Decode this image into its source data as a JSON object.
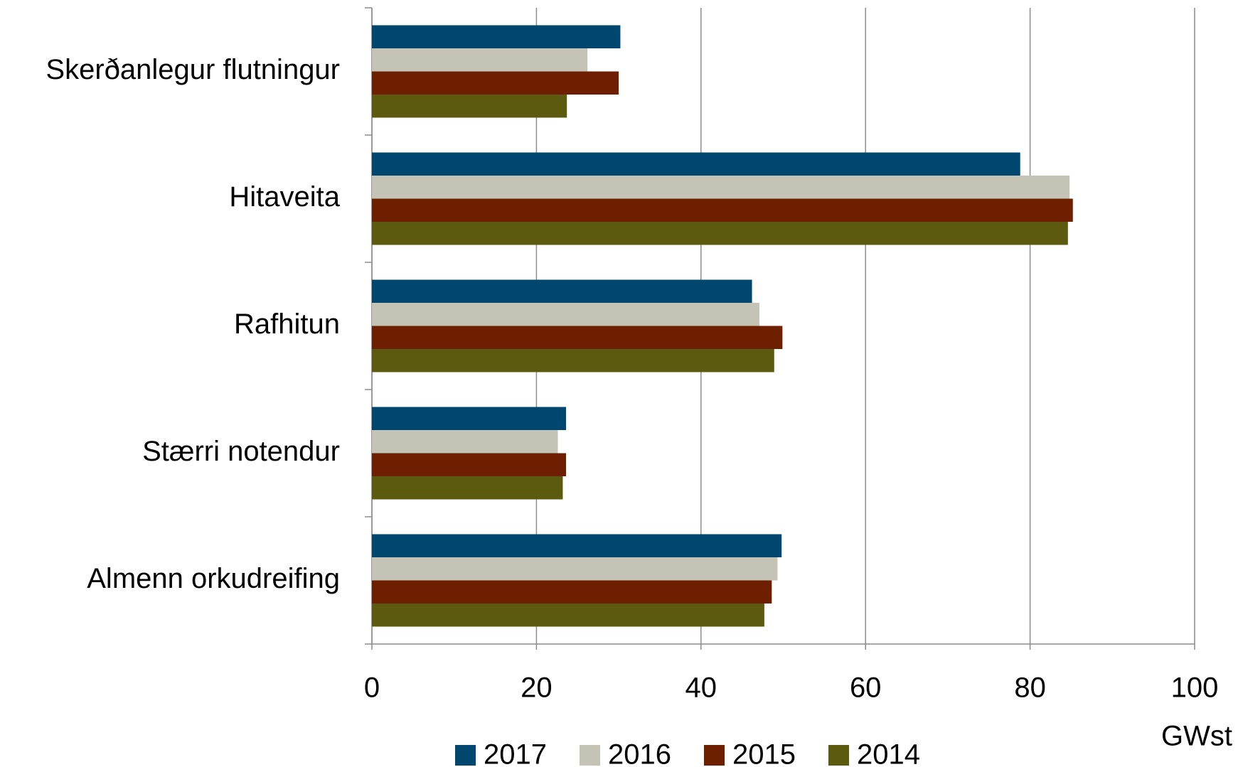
{
  "chart_data": {
    "type": "hbar",
    "categories": [
      "Skerðanlegur flutningur",
      "Hitaveita",
      "Rafhitun",
      "Stærri notendur",
      "Almenn orkudreifing"
    ],
    "series": [
      {
        "name": "2017",
        "color": "#00476f",
        "values": [
          30.2,
          78.8,
          46.2,
          23.6,
          49.8
        ]
      },
      {
        "name": "2016",
        "color": "#c4c3b5",
        "values": [
          26.2,
          84.8,
          47.1,
          22.6,
          49.3
        ]
      },
      {
        "name": "2015",
        "color": "#6d1f00",
        "values": [
          30.0,
          85.2,
          49.9,
          23.6,
          48.6
        ]
      },
      {
        "name": "2014",
        "color": "#5c5a0f",
        "values": [
          23.7,
          84.6,
          48.9,
          23.2,
          47.7
        ]
      }
    ],
    "x_label": "GWst",
    "xlim": [
      0,
      100
    ],
    "xticks": [
      0,
      20,
      40,
      60,
      80,
      100
    ],
    "grid": true
  }
}
